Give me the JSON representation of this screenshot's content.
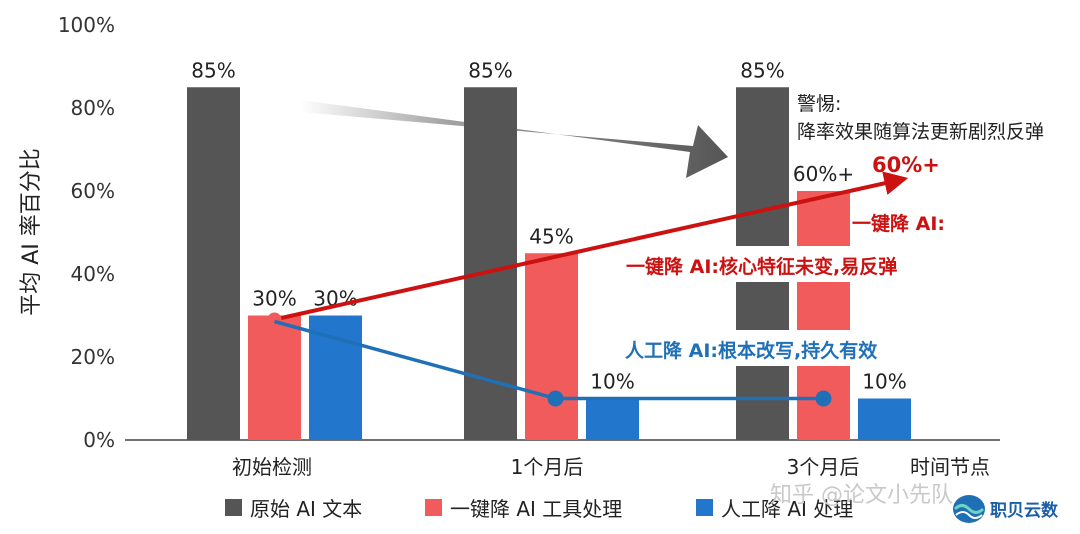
{
  "chart_data": {
    "type": "bar",
    "ylabel": "平均 AI 率百分比",
    "xlabel": "时间节点",
    "ylim": [
      0,
      100
    ],
    "yticks": [
      "0%",
      "20%",
      "40%",
      "60%",
      "80%",
      "100%"
    ],
    "ytick_values": [
      0,
      20,
      40,
      60,
      80,
      100
    ],
    "categories": [
      "初始检测",
      "1个月后",
      "3个月后"
    ],
    "series": [
      {
        "name": "原始 AI 文本",
        "values": [
          85,
          85,
          85
        ],
        "labels": [
          "85%",
          "85%",
          "85%"
        ],
        "color": "#555555"
      },
      {
        "name": "一键降 AI 工具处理",
        "values": [
          30,
          45,
          60
        ],
        "labels": [
          "30%",
          "45%",
          "60%+"
        ],
        "color": "#f25b5b"
      },
      {
        "name": "人工降 AI 处理",
        "values": [
          30,
          10,
          10
        ],
        "labels": [
          "30%",
          "10%",
          "10%"
        ],
        "color": "#2277cc"
      }
    ],
    "legend_position": "bottom",
    "annotations": {
      "warning_title": "警惕:",
      "warning_text": "降率效果随算法更新剧烈反弹",
      "red_peak": "60%+",
      "red_title": "一键降 AI:",
      "red_text": "一键降 AI:核心特征未变,易反弹",
      "blue_text": "人工降 AI:根本改写,持久有效"
    }
  },
  "watermark": "知乎 @论文小先队",
  "brand": "职贝云数",
  "colors": {
    "trend_red": "#cc1111",
    "trend_blue": "#2070b8",
    "arrow_gray": "#555555"
  }
}
